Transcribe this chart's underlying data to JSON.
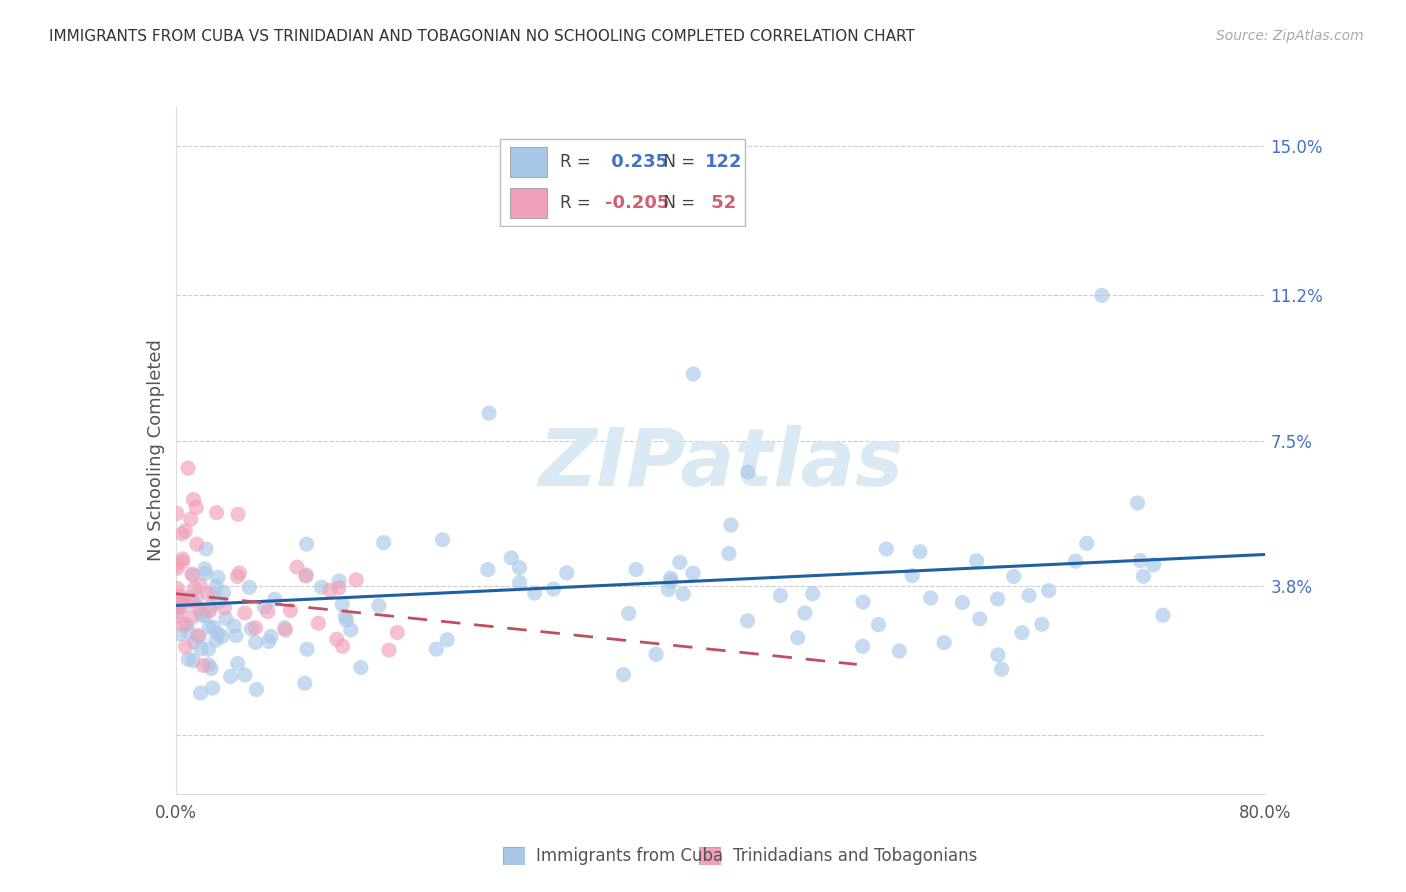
{
  "title": "IMMIGRANTS FROM CUBA VS TRINIDADIAN AND TOBAGONIAN NO SCHOOLING COMPLETED CORRELATION CHART",
  "source": "Source: ZipAtlas.com",
  "ylabel": "No Schooling Completed",
  "xlim": [
    0.0,
    0.8
  ],
  "ylim": [
    -0.015,
    0.16
  ],
  "ytick_vals": [
    0.0,
    0.038,
    0.075,
    0.112,
    0.15
  ],
  "ytick_labels": [
    "",
    "3.8%",
    "7.5%",
    "11.2%",
    "15.0%"
  ],
  "blue_R": 0.235,
  "blue_N": 122,
  "pink_R": -0.205,
  "pink_N": 52,
  "blue_color": "#a8c8e8",
  "pink_color": "#f0a0b8",
  "blue_line_color": "#2060a0",
  "pink_line_color": "#c05060",
  "watermark": "ZIPatlas",
  "legend_label_blue": "Immigrants from Cuba",
  "legend_label_pink": "Trinidadians and Tobagonians",
  "blue_trend_x0": 0.0,
  "blue_trend_x1": 0.8,
  "blue_trend_y0": 0.033,
  "blue_trend_y1": 0.046,
  "pink_trend_x0": 0.0,
  "pink_trend_x1": 0.5,
  "pink_trend_y0": 0.036,
  "pink_trend_y1": 0.018,
  "title_fontsize": 11,
  "source_fontsize": 10,
  "tick_label_fontsize": 12,
  "ylabel_fontsize": 13
}
